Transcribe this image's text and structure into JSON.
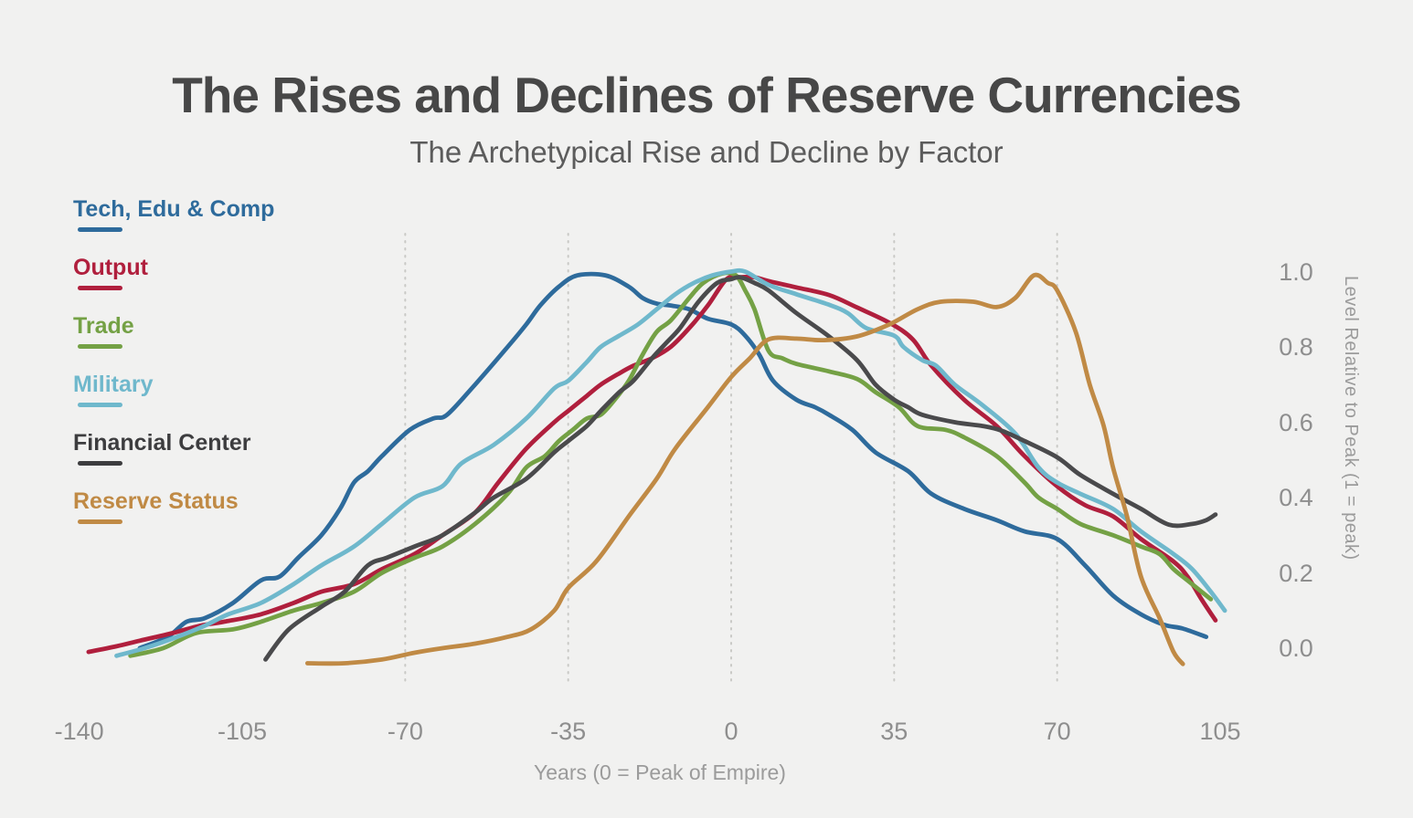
{
  "title": "The Rises and Declines of Reserve Currencies",
  "subtitle": "The Archetypical Rise and Decline by Factor",
  "colors": {
    "background": "#f1f1f0",
    "title": "#474747",
    "subtitle": "#5c5c5c",
    "tick_labels": "#8e8e8e",
    "axis_titles": "#9b9b9b",
    "gridline": "#c9c9c6",
    "tech": "#2e6b9c",
    "output": "#b01f3d",
    "trade": "#74a145",
    "military": "#6fb8cc",
    "financial": "#4a4a4c",
    "reserve": "#c08a45"
  },
  "legend": [
    {
      "label": "Tech, Edu & Comp",
      "color": "#2e6b9c"
    },
    {
      "label": "Output",
      "color": "#b01f3d"
    },
    {
      "label": "Trade",
      "color": "#74a145"
    },
    {
      "label": "Military",
      "color": "#6fb8cc"
    },
    {
      "label": "Financial Center",
      "color": "#3d3d3f"
    },
    {
      "label": "Reserve Status",
      "color": "#c08a45"
    }
  ],
  "axes": {
    "x_label": "Years (0 = Peak of Empire)",
    "y_label": "Level Relative to Peak (1 = peak)",
    "x_tick_labels": [
      "-140",
      "-105",
      "-70",
      "-35",
      "0",
      "35",
      "70",
      "105"
    ],
    "y_tick_labels": [
      "1.0",
      "0.8",
      "0.6",
      "0.4",
      "0.2",
      "0.0"
    ]
  },
  "chart_data": {
    "type": "line",
    "title": "The Rises and Declines of Reserve Currencies",
    "subtitle": "The Archetypical Rise and Decline by Factor",
    "xlabel": "Years (0 = Peak of Empire)",
    "ylabel": "Level Relative to Peak (1 = peak)",
    "xlim": [
      -140,
      108
    ],
    "ylim": [
      -0.05,
      1.02
    ],
    "x_ticks": [
      -140,
      -105,
      -70,
      -35,
      0,
      35,
      70,
      105
    ],
    "y_ticks": [
      1.0,
      0.8,
      0.6,
      0.4,
      0.2,
      0.0
    ],
    "gridlines_x": [
      -70,
      -35,
      0,
      35,
      70
    ],
    "grid": "dotted-vertical-only",
    "legend_position": "upper-left",
    "series": [
      {
        "name": "Tech, Edu & Comp",
        "color": "#2e6b9c",
        "points": [
          [
            -127,
            0.0
          ],
          [
            -121,
            0.03
          ],
          [
            -117,
            0.07
          ],
          [
            -113,
            0.08
          ],
          [
            -107,
            0.12
          ],
          [
            -101,
            0.18
          ],
          [
            -97,
            0.19
          ],
          [
            -93,
            0.24
          ],
          [
            -88,
            0.3
          ],
          [
            -84,
            0.37
          ],
          [
            -81,
            0.44
          ],
          [
            -78,
            0.47
          ],
          [
            -75,
            0.51
          ],
          [
            -69,
            0.58
          ],
          [
            -64,
            0.61
          ],
          [
            -61,
            0.62
          ],
          [
            -55,
            0.7
          ],
          [
            -48,
            0.8
          ],
          [
            -44,
            0.86
          ],
          [
            -41,
            0.91
          ],
          [
            -37,
            0.96
          ],
          [
            -33,
            0.99
          ],
          [
            -27,
            0.99
          ],
          [
            -22,
            0.96
          ],
          [
            -19,
            0.93
          ],
          [
            -16,
            0.915
          ],
          [
            -13,
            0.91
          ],
          [
            -9,
            0.9
          ],
          [
            -5,
            0.875
          ],
          [
            0,
            0.86
          ],
          [
            3,
            0.83
          ],
          [
            6,
            0.78
          ],
          [
            9,
            0.71
          ],
          [
            14,
            0.66
          ],
          [
            18,
            0.64
          ],
          [
            21,
            0.62
          ],
          [
            26,
            0.58
          ],
          [
            31,
            0.52
          ],
          [
            38,
            0.47
          ],
          [
            43,
            0.41
          ],
          [
            50,
            0.37
          ],
          [
            57,
            0.34
          ],
          [
            63,
            0.31
          ],
          [
            70,
            0.29
          ],
          [
            76,
            0.22
          ],
          [
            82,
            0.14
          ],
          [
            88,
            0.09
          ],
          [
            93,
            0.062
          ],
          [
            97,
            0.052
          ],
          [
            102,
            0.03
          ]
        ]
      },
      {
        "name": "Output",
        "color": "#b01f3d",
        "points": [
          [
            -138,
            -0.01
          ],
          [
            -132,
            0.005
          ],
          [
            -127,
            0.02
          ],
          [
            -120,
            0.04
          ],
          [
            -114,
            0.06
          ],
          [
            -109,
            0.07
          ],
          [
            -101,
            0.09
          ],
          [
            -94,
            0.12
          ],
          [
            -88,
            0.15
          ],
          [
            -81,
            0.17
          ],
          [
            -75,
            0.21
          ],
          [
            -68,
            0.25
          ],
          [
            -62,
            0.3
          ],
          [
            -55,
            0.36
          ],
          [
            -50,
            0.44
          ],
          [
            -44,
            0.53
          ],
          [
            -38,
            0.6
          ],
          [
            -35,
            0.63
          ],
          [
            -31,
            0.67
          ],
          [
            -28,
            0.7
          ],
          [
            -24,
            0.73
          ],
          [
            -21,
            0.75
          ],
          [
            -17,
            0.77
          ],
          [
            -13,
            0.8
          ],
          [
            -9,
            0.85
          ],
          [
            -5,
            0.91
          ],
          [
            -1,
            0.98
          ],
          [
            2,
            0.985
          ],
          [
            5,
            0.985
          ],
          [
            8,
            0.975
          ],
          [
            14,
            0.958
          ],
          [
            21,
            0.938
          ],
          [
            27,
            0.905
          ],
          [
            34,
            0.864
          ],
          [
            39,
            0.82
          ],
          [
            43,
            0.75
          ],
          [
            50,
            0.66
          ],
          [
            57,
            0.59
          ],
          [
            63,
            0.51
          ],
          [
            70,
            0.43
          ],
          [
            76,
            0.38
          ],
          [
            82,
            0.35
          ],
          [
            88,
            0.29
          ],
          [
            95,
            0.23
          ],
          [
            98,
            0.19
          ],
          [
            101,
            0.13
          ],
          [
            104,
            0.074
          ]
        ]
      },
      {
        "name": "Trade",
        "color": "#74a145",
        "points": [
          [
            -129,
            -0.02
          ],
          [
            -122,
            0.0
          ],
          [
            -115,
            0.04
          ],
          [
            -107,
            0.05
          ],
          [
            -101,
            0.07
          ],
          [
            -94,
            0.1
          ],
          [
            -88,
            0.12
          ],
          [
            -81,
            0.15
          ],
          [
            -75,
            0.2
          ],
          [
            -68,
            0.24
          ],
          [
            -62,
            0.27
          ],
          [
            -55,
            0.33
          ],
          [
            -48,
            0.41
          ],
          [
            -44,
            0.48
          ],
          [
            -40,
            0.51
          ],
          [
            -37,
            0.55
          ],
          [
            -34,
            0.58
          ],
          [
            -31,
            0.61
          ],
          [
            -28,
            0.62
          ],
          [
            -25,
            0.66
          ],
          [
            -22,
            0.71
          ],
          [
            -19,
            0.78
          ],
          [
            -16,
            0.84
          ],
          [
            -13,
            0.87
          ],
          [
            -9,
            0.93
          ],
          [
            -6,
            0.97
          ],
          [
            -2,
            0.995
          ],
          [
            1,
            0.99
          ],
          [
            3,
            0.95
          ],
          [
            5,
            0.9
          ],
          [
            8,
            0.79
          ],
          [
            11,
            0.77
          ],
          [
            14,
            0.755
          ],
          [
            21,
            0.735
          ],
          [
            27,
            0.715
          ],
          [
            31,
            0.68
          ],
          [
            36,
            0.64
          ],
          [
            40,
            0.59
          ],
          [
            46,
            0.58
          ],
          [
            50,
            0.56
          ],
          [
            57,
            0.51
          ],
          [
            63,
            0.44
          ],
          [
            66,
            0.4
          ],
          [
            70,
            0.37
          ],
          [
            75,
            0.33
          ],
          [
            82,
            0.3
          ],
          [
            88,
            0.27
          ],
          [
            92,
            0.25
          ],
          [
            95,
            0.21
          ],
          [
            98,
            0.18
          ],
          [
            103,
            0.13
          ]
        ]
      },
      {
        "name": "Military",
        "color": "#6fb8cc",
        "points": [
          [
            -132,
            -0.02
          ],
          [
            -126,
            0.0
          ],
          [
            -119,
            0.03
          ],
          [
            -113,
            0.06
          ],
          [
            -108,
            0.09
          ],
          [
            -101,
            0.12
          ],
          [
            -94,
            0.17
          ],
          [
            -88,
            0.22
          ],
          [
            -81,
            0.27
          ],
          [
            -75,
            0.33
          ],
          [
            -68,
            0.4
          ],
          [
            -62,
            0.43
          ],
          [
            -58,
            0.49
          ],
          [
            -51,
            0.54
          ],
          [
            -44,
            0.61
          ],
          [
            -38,
            0.69
          ],
          [
            -35,
            0.71
          ],
          [
            -31,
            0.76
          ],
          [
            -28,
            0.8
          ],
          [
            -24,
            0.83
          ],
          [
            -20,
            0.86
          ],
          [
            -16,
            0.9
          ],
          [
            -12,
            0.94
          ],
          [
            -8,
            0.97
          ],
          [
            -4,
            0.99
          ],
          [
            0,
            1.0
          ],
          [
            3,
            1.0
          ],
          [
            8,
            0.965
          ],
          [
            14,
            0.94
          ],
          [
            21,
            0.912
          ],
          [
            25,
            0.89
          ],
          [
            29,
            0.85
          ],
          [
            35,
            0.83
          ],
          [
            37,
            0.8
          ],
          [
            41,
            0.765
          ],
          [
            44,
            0.75
          ],
          [
            48,
            0.7
          ],
          [
            54,
            0.645
          ],
          [
            61,
            0.57
          ],
          [
            66,
            0.48
          ],
          [
            70,
            0.44
          ],
          [
            75,
            0.41
          ],
          [
            82,
            0.37
          ],
          [
            88,
            0.31
          ],
          [
            95,
            0.25
          ],
          [
            99,
            0.21
          ],
          [
            103,
            0.15
          ],
          [
            106,
            0.1
          ]
        ]
      },
      {
        "name": "Financial Center",
        "color": "#4a4a4c",
        "points": [
          [
            -100,
            -0.03
          ],
          [
            -95,
            0.05
          ],
          [
            -88,
            0.11
          ],
          [
            -83,
            0.15
          ],
          [
            -78,
            0.22
          ],
          [
            -74,
            0.24
          ],
          [
            -68,
            0.27
          ],
          [
            -62,
            0.3
          ],
          [
            -55,
            0.36
          ],
          [
            -51,
            0.4
          ],
          [
            -44,
            0.45
          ],
          [
            -38,
            0.52
          ],
          [
            -35,
            0.55
          ],
          [
            -31,
            0.59
          ],
          [
            -28,
            0.63
          ],
          [
            -24,
            0.68
          ],
          [
            -21,
            0.71
          ],
          [
            -17,
            0.77
          ],
          [
            -14,
            0.81
          ],
          [
            -11,
            0.85
          ],
          [
            -7,
            0.92
          ],
          [
            -3,
            0.97
          ],
          [
            0,
            0.98
          ],
          [
            2,
            0.985
          ],
          [
            5,
            0.97
          ],
          [
            8,
            0.95
          ],
          [
            14,
            0.89
          ],
          [
            21,
            0.828
          ],
          [
            27,
            0.765
          ],
          [
            31,
            0.7
          ],
          [
            35,
            0.66
          ],
          [
            38,
            0.64
          ],
          [
            41,
            0.62
          ],
          [
            48,
            0.6
          ],
          [
            54,
            0.59
          ],
          [
            58,
            0.578
          ],
          [
            63,
            0.55
          ],
          [
            70,
            0.507
          ],
          [
            75,
            0.46
          ],
          [
            82,
            0.41
          ],
          [
            88,
            0.37
          ],
          [
            94,
            0.328
          ],
          [
            99,
            0.33
          ],
          [
            102,
            0.34
          ],
          [
            104,
            0.355
          ]
        ]
      },
      {
        "name": "Reserve Status",
        "color": "#c08a45",
        "points": [
          [
            -91,
            -0.04
          ],
          [
            -83,
            -0.04
          ],
          [
            -75,
            -0.03
          ],
          [
            -68,
            -0.012
          ],
          [
            -62,
            0.0
          ],
          [
            -55,
            0.012
          ],
          [
            -48,
            0.03
          ],
          [
            -43,
            0.05
          ],
          [
            -38,
            0.1
          ],
          [
            -35,
            0.16
          ],
          [
            -29,
            0.23
          ],
          [
            -22,
            0.35
          ],
          [
            -16,
            0.45
          ],
          [
            -12,
            0.53
          ],
          [
            -5,
            0.64
          ],
          [
            0,
            0.72
          ],
          [
            4,
            0.77
          ],
          [
            8,
            0.82
          ],
          [
            14,
            0.822
          ],
          [
            20,
            0.818
          ],
          [
            27,
            0.828
          ],
          [
            34,
            0.86
          ],
          [
            40,
            0.9
          ],
          [
            45,
            0.92
          ],
          [
            52,
            0.92
          ],
          [
            57,
            0.906
          ],
          [
            61,
            0.93
          ],
          [
            65,
            0.99
          ],
          [
            68,
            0.97
          ],
          [
            70,
            0.95
          ],
          [
            74,
            0.84
          ],
          [
            77,
            0.7
          ],
          [
            80,
            0.59
          ],
          [
            82,
            0.48
          ],
          [
            85,
            0.35
          ],
          [
            88,
            0.19
          ],
          [
            92,
            0.08
          ],
          [
            95,
            -0.01
          ],
          [
            97,
            -0.042
          ]
        ]
      }
    ]
  }
}
